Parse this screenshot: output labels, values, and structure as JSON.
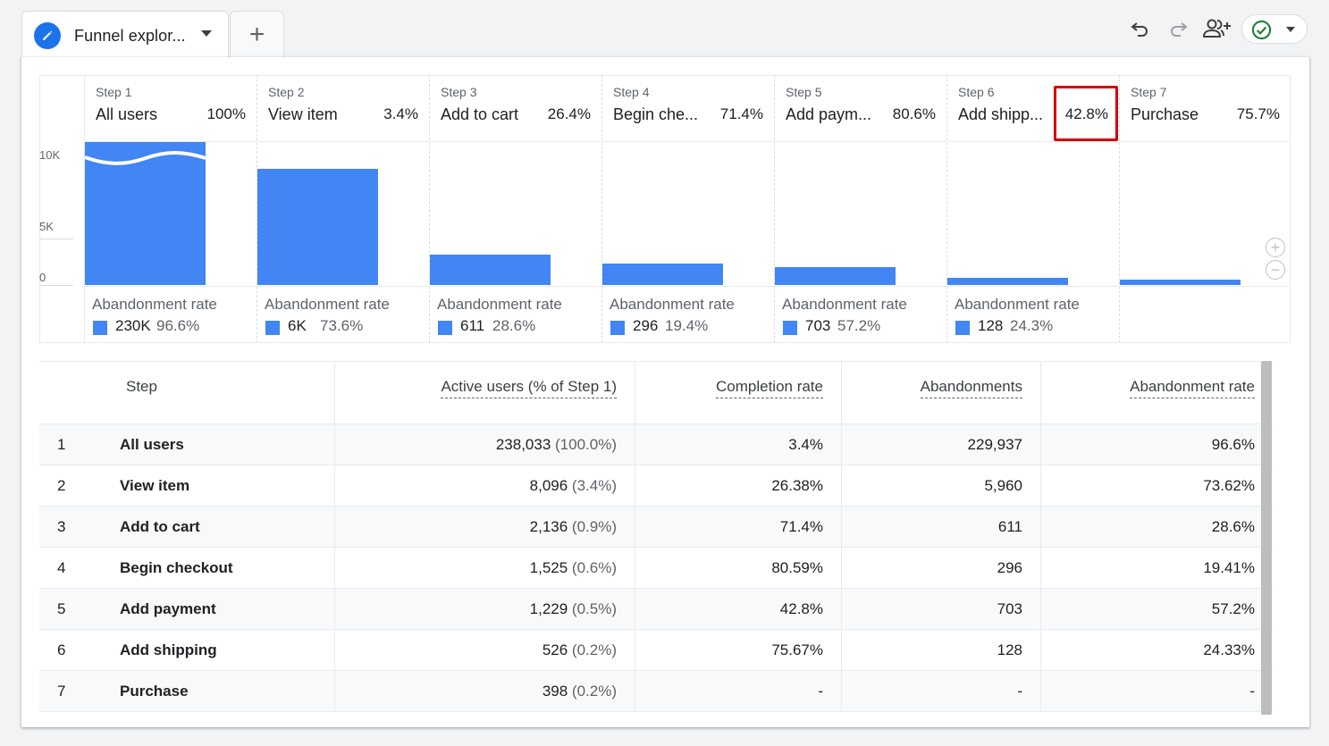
{
  "tab": {
    "title": "Funnel explor...",
    "add_label": "+"
  },
  "toolbar": {
    "icons": [
      "undo-icon",
      "redo-icon",
      "share-users-icon",
      "check-circle-icon"
    ]
  },
  "colors": {
    "bar": "#4285f4",
    "accent": "#1a73e8",
    "highlight": "#d50000",
    "check": "#188038"
  },
  "chart_data": {
    "type": "bar",
    "title": "",
    "y_ticks": [
      "10K",
      "5K",
      "0"
    ],
    "ylim": [
      0,
      10000
    ],
    "steps": [
      {
        "step": "Step 1",
        "name": "All users",
        "pct": "100%",
        "value": 238033,
        "abandon_label": "Abandonment rate",
        "abandon_count": "230K",
        "abandon_rate": "96.6%"
      },
      {
        "step": "Step 2",
        "name": "View item",
        "pct": "3.4%",
        "value": 8096,
        "abandon_label": "Abandonment rate",
        "abandon_count": "6K",
        "abandon_rate": "73.6%"
      },
      {
        "step": "Step 3",
        "name": "Add to cart",
        "pct": "26.4%",
        "value": 2136,
        "abandon_label": "Abandonment rate",
        "abandon_count": "611",
        "abandon_rate": "28.6%"
      },
      {
        "step": "Step 4",
        "name": "Begin che...",
        "pct": "71.4%",
        "value": 1525,
        "abandon_label": "Abandonment rate",
        "abandon_count": "296",
        "abandon_rate": "19.4%"
      },
      {
        "step": "Step 5",
        "name": "Add paym...",
        "pct": "80.6%",
        "value": 1229,
        "abandon_label": "Abandonment rate",
        "abandon_count": "703",
        "abandon_rate": "57.2%"
      },
      {
        "step": "Step 6",
        "name": "Add shipp...",
        "pct": "42.8%",
        "value": 526,
        "abandon_label": "Abandonment rate",
        "abandon_count": "128",
        "abandon_rate": "24.3%"
      },
      {
        "step": "Step 7",
        "name": "Purchase",
        "pct": "75.7%",
        "value": 398,
        "abandon_label": "",
        "abandon_count": "",
        "abandon_rate": ""
      }
    ]
  },
  "table": {
    "headers": {
      "step": "Step",
      "active_users": "Active users (% of Step 1)",
      "completion": "Completion rate",
      "abandonments": "Abandonments",
      "abandon_rate": "Abandonment rate"
    },
    "rows": [
      {
        "num": "1",
        "name": "All users",
        "users": "238,033",
        "users_pct": "(100.0%)",
        "completion": "3.4%",
        "abandonments": "229,937",
        "abandon_rate": "96.6%"
      },
      {
        "num": "2",
        "name": "View item",
        "users": "8,096",
        "users_pct": "(3.4%)",
        "completion": "26.38%",
        "abandonments": "5,960",
        "abandon_rate": "73.62%"
      },
      {
        "num": "3",
        "name": "Add to cart",
        "users": "2,136",
        "users_pct": "(0.9%)",
        "completion": "71.4%",
        "abandonments": "611",
        "abandon_rate": "28.6%"
      },
      {
        "num": "4",
        "name": "Begin checkout",
        "users": "1,525",
        "users_pct": "(0.6%)",
        "completion": "80.59%",
        "abandonments": "296",
        "abandon_rate": "19.41%"
      },
      {
        "num": "5",
        "name": "Add payment",
        "users": "1,229",
        "users_pct": "(0.5%)",
        "completion": "42.8%",
        "abandonments": "703",
        "abandon_rate": "57.2%"
      },
      {
        "num": "6",
        "name": "Add shipping",
        "users": "526",
        "users_pct": "(0.2%)",
        "completion": "75.67%",
        "abandonments": "128",
        "abandon_rate": "24.33%"
      },
      {
        "num": "7",
        "name": "Purchase",
        "users": "398",
        "users_pct": "(0.2%)",
        "completion": "-",
        "abandonments": "-",
        "abandon_rate": "-"
      }
    ]
  }
}
